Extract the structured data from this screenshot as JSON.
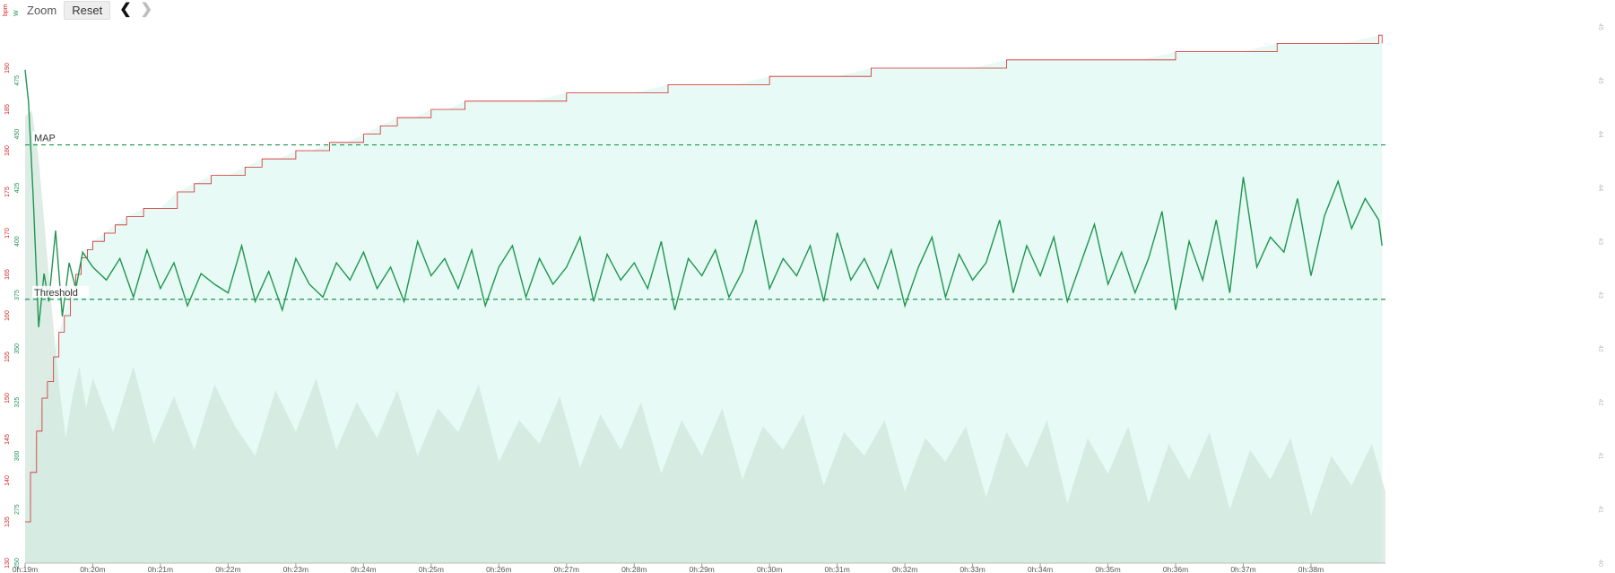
{
  "toolbar": {
    "zoom_label": "Zoom",
    "reset_label": "Reset",
    "prev_icon": "chevron-left-icon",
    "next_icon": "chevron-right-icon"
  },
  "colors": {
    "heart_rate": "#d62728",
    "power": "#1e9650",
    "cadence_area": "#e6e6e6",
    "power_area": "#d4f5ec",
    "reference_line": "#1e9650"
  },
  "chart_data": {
    "type": "line",
    "x_ticks": [
      "0h:19m",
      "0h:20m",
      "0h:21m",
      "0h:22m",
      "0h:23m",
      "0h:24m",
      "0h:25m",
      "0h:26m",
      "0h:27m",
      "0h:28m",
      "0h:29m",
      "0h:30m",
      "0h:31m",
      "0h:32m",
      "0h:33m",
      "0h:34m",
      "0h:35m",
      "0h:36m",
      "0h:37m",
      "0h:38m"
    ],
    "x_range_minutes": [
      19,
      39.1
    ],
    "axes": {
      "hr": {
        "unit": "bpm",
        "range": [
          130,
          195
        ],
        "ticks": [
          "130",
          "135",
          "140",
          "145",
          "150",
          "155",
          "160",
          "165",
          "170",
          "175",
          "180",
          "185",
          "190"
        ]
      },
      "power": {
        "unit": "W",
        "range": [
          250,
          500
        ],
        "ticks": [
          "250",
          "275",
          "300",
          "325",
          "350",
          "375",
          "400",
          "425",
          "450",
          "475"
        ]
      },
      "right": {
        "range": [
          40,
          49
        ],
        "ticks": [
          "40",
          "41",
          "41",
          "42",
          "42",
          "43",
          "43",
          "44",
          "44",
          "45",
          "45"
        ]
      }
    },
    "reference_lines": [
      {
        "label": "MAP",
        "value": 445
      },
      {
        "label": "Threshold",
        "value": 373
      }
    ],
    "series": [
      {
        "axis": "hr",
        "x": [
          19.0,
          19.08,
          19.17,
          19.25,
          19.33,
          19.42,
          19.5,
          19.58,
          19.67,
          19.75,
          19.83,
          19.92,
          20.0,
          20.17,
          20.33,
          20.5,
          20.75,
          21.0,
          21.25,
          21.5,
          21.75,
          22.0,
          22.25,
          22.5,
          22.75,
          23.0,
          23.25,
          23.5,
          23.75,
          24.0,
          24.25,
          24.5,
          24.75,
          25.0,
          25.25,
          25.5,
          26.0,
          26.5,
          27.0,
          27.5,
          28.0,
          28.5,
          29.0,
          29.5,
          30.0,
          30.5,
          31.0,
          31.5,
          32.0,
          32.5,
          33.0,
          33.5,
          34.0,
          34.5,
          35.0,
          35.5,
          36.0,
          36.5,
          37.0,
          37.5,
          38.0,
          38.5,
          39.0,
          39.05
        ],
        "values": [
          135,
          141,
          146,
          150,
          152,
          155,
          158,
          160,
          163,
          165,
          167,
          168,
          169,
          170,
          171,
          172,
          173,
          173,
          175,
          176,
          177,
          177,
          178,
          179,
          179,
          180,
          180,
          181,
          181,
          182,
          183,
          184,
          184,
          185,
          185,
          186,
          186,
          186,
          187,
          187,
          187,
          188,
          188,
          188,
          189,
          189,
          189,
          190,
          190,
          190,
          190,
          191,
          191,
          191,
          191,
          191,
          192,
          192,
          192,
          193,
          193,
          193,
          194,
          193
        ]
      },
      {
        "axis": "power",
        "x": [
          19.0,
          19.05,
          19.12,
          19.2,
          19.28,
          19.35,
          19.45,
          19.55,
          19.65,
          19.75,
          19.85,
          20.0,
          20.2,
          20.4,
          20.6,
          20.8,
          21.0,
          21.2,
          21.4,
          21.6,
          21.8,
          22.0,
          22.2,
          22.4,
          22.6,
          22.8,
          23.0,
          23.2,
          23.4,
          23.6,
          23.8,
          24.0,
          24.2,
          24.4,
          24.6,
          24.8,
          25.0,
          25.2,
          25.4,
          25.6,
          25.8,
          26.0,
          26.2,
          26.4,
          26.6,
          26.8,
          27.0,
          27.2,
          27.4,
          27.6,
          27.8,
          28.0,
          28.2,
          28.4,
          28.6,
          28.8,
          29.0,
          29.2,
          29.4,
          29.6,
          29.8,
          30.0,
          30.2,
          30.4,
          30.6,
          30.8,
          31.0,
          31.2,
          31.4,
          31.6,
          31.8,
          32.0,
          32.2,
          32.4,
          32.6,
          32.8,
          33.0,
          33.2,
          33.4,
          33.6,
          33.8,
          34.0,
          34.2,
          34.4,
          34.6,
          34.8,
          35.0,
          35.2,
          35.4,
          35.6,
          35.8,
          36.0,
          36.2,
          36.4,
          36.6,
          36.8,
          37.0,
          37.2,
          37.4,
          37.6,
          37.8,
          38.0,
          38.2,
          38.4,
          38.6,
          38.8,
          39.0,
          39.05
        ],
        "values": [
          480,
          465,
          420,
          360,
          385,
          372,
          405,
          365,
          390,
          378,
          395,
          388,
          382,
          392,
          374,
          396,
          378,
          390,
          370,
          385,
          380,
          376,
          398,
          372,
          386,
          368,
          392,
          380,
          374,
          390,
          382,
          395,
          378,
          388,
          372,
          400,
          384,
          392,
          378,
          396,
          370,
          388,
          398,
          374,
          392,
          380,
          388,
          402,
          372,
          394,
          382,
          390,
          378,
          400,
          368,
          392,
          384,
          396,
          374,
          386,
          410,
          378,
          392,
          384,
          398,
          372,
          404,
          382,
          392,
          378,
          396,
          370,
          388,
          402,
          374,
          394,
          382,
          390,
          410,
          376,
          398,
          384,
          402,
          372,
          390,
          408,
          380,
          395,
          376,
          392,
          414,
          368,
          400,
          382,
          410,
          376,
          430,
          388,
          402,
          395,
          420,
          384,
          412,
          428,
          406,
          420,
          410,
          398
        ]
      },
      {
        "axis": "right",
        "x": [
          19.0,
          19.1,
          19.2,
          19.3,
          19.4,
          19.5,
          19.6,
          19.7,
          19.8,
          19.9,
          20.0,
          20.3,
          20.6,
          20.9,
          21.2,
          21.5,
          21.8,
          22.1,
          22.4,
          22.7,
          23.0,
          23.3,
          23.6,
          23.9,
          24.2,
          24.5,
          24.8,
          25.1,
          25.4,
          25.7,
          26.0,
          26.3,
          26.6,
          26.9,
          27.2,
          27.5,
          27.8,
          28.1,
          28.4,
          28.7,
          29.0,
          29.3,
          29.6,
          29.9,
          30.2,
          30.5,
          30.8,
          31.1,
          31.4,
          31.7,
          32.0,
          32.3,
          32.6,
          32.9,
          33.2,
          33.5,
          33.8,
          34.1,
          34.4,
          34.7,
          35.0,
          35.3,
          35.6,
          35.9,
          36.2,
          36.5,
          36.8,
          37.1,
          37.4,
          37.7,
          38.0,
          38.3,
          38.6,
          38.9,
          39.1
        ],
        "values": [
          47.5,
          47.6,
          46.8,
          45.5,
          44.2,
          43.0,
          42.1,
          42.8,
          43.3,
          42.6,
          43.1,
          42.2,
          43.3,
          42.0,
          42.8,
          41.9,
          43.0,
          42.3,
          41.8,
          42.9,
          42.2,
          43.1,
          41.9,
          42.7,
          42.1,
          42.9,
          41.8,
          42.6,
          42.2,
          43.0,
          41.7,
          42.4,
          42.0,
          42.8,
          41.6,
          42.5,
          41.9,
          42.7,
          41.5,
          42.4,
          41.8,
          42.6,
          41.4,
          42.3,
          41.9,
          42.5,
          41.3,
          42.2,
          41.8,
          42.4,
          41.2,
          42.1,
          41.7,
          42.3,
          41.1,
          42.2,
          41.6,
          42.4,
          41.0,
          42.1,
          41.5,
          42.3,
          41.0,
          42.0,
          41.4,
          42.2,
          40.9,
          41.9,
          41.4,
          42.1,
          40.8,
          41.8,
          41.3,
          42.0,
          41.2
        ]
      }
    ]
  }
}
